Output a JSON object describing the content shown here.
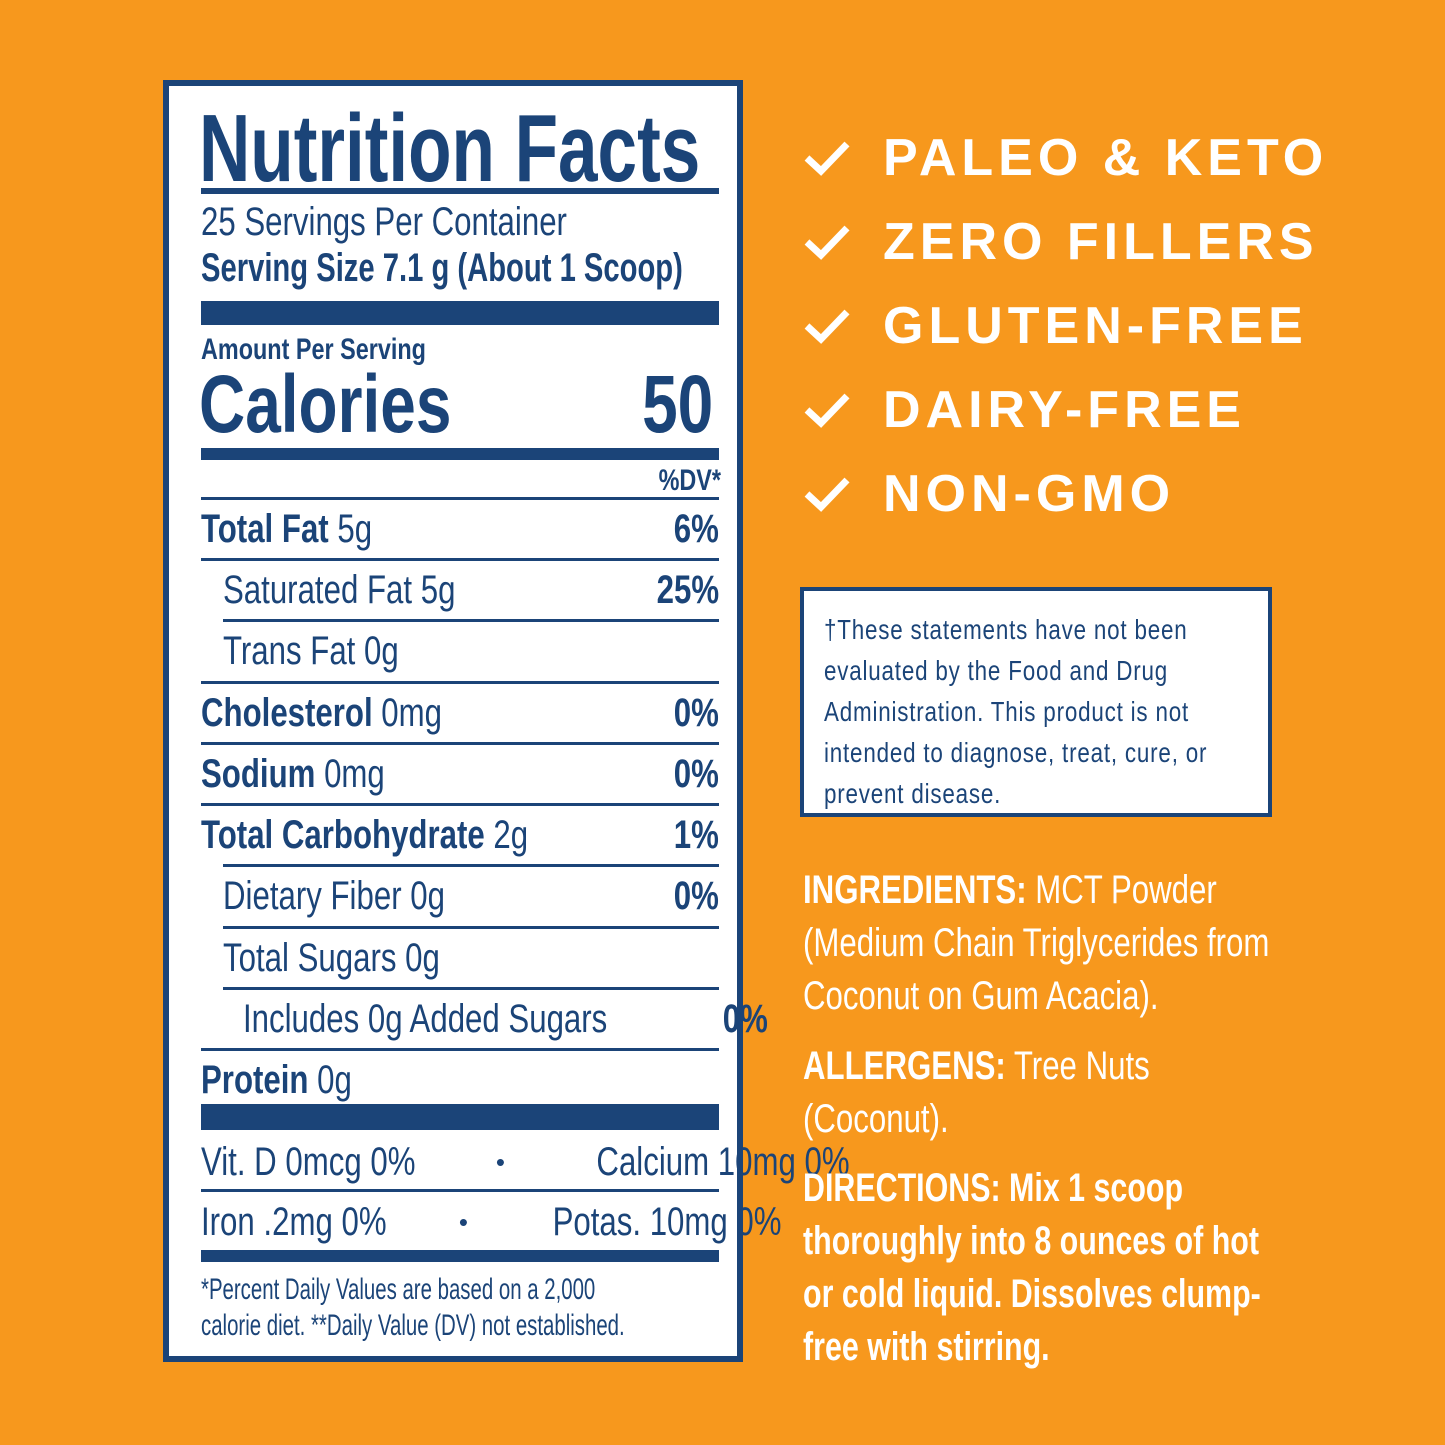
{
  "label": {
    "title": "Nutrition Facts",
    "servings": "25 Servings Per Container",
    "serving_size": "Serving Size 7.1 g (About 1 Scoop)",
    "amount_per_serving": "Amount Per Serving",
    "calories_label": "Calories",
    "calories_value": "50",
    "dv_header": "%DV*",
    "nutrients": [
      {
        "name": "Total Fat",
        "amount": "5g",
        "dv": "6%"
      },
      {
        "name": "Saturated Fat 5g",
        "dv": "25%"
      },
      {
        "name": "Trans Fat 0g",
        "dv": ""
      },
      {
        "name": "Cholesterol",
        "amount": " 0mg",
        "dv": "0%"
      },
      {
        "name": "Sodium",
        "amount": "0mg",
        "dv": "0%"
      },
      {
        "name": "Total Carbohydrate",
        "amount": "2g",
        "dv": "1%"
      },
      {
        "name": "Dietary Fiber 0g",
        "dv": "0%"
      },
      {
        "name": "Total Sugars 0g",
        "dv": ""
      },
      {
        "name": "Includes 0g Added Sugars",
        "dv": "0%"
      },
      {
        "name": "Protein",
        "amount": "0g",
        "dv": ""
      }
    ],
    "vitamins_row1": {
      "left": "Vit. D 0mcg 0%",
      "sep": "•",
      "right": "Calcium 10mg 0%"
    },
    "vitamins_row2": {
      "left": "Iron .2mg 0%",
      "sep": "•",
      "right": "Potas. 10mg 0%"
    },
    "footnote_line1": "*Percent Daily Values are based on a 2,000",
    "footnote_line2": "calorie diet. **Daily Value (DV) not established."
  },
  "claims": [
    {
      "icon": "checkmark-icon",
      "text": "PALEO & KETO"
    },
    {
      "icon": "checkmark-icon",
      "text": "ZERO FILLERS"
    },
    {
      "icon": "checkmark-icon",
      "text": "GLUTEN-FREE"
    },
    {
      "icon": "checkmark-icon",
      "text": "DAIRY-FREE"
    },
    {
      "icon": "checkmark-icon",
      "text": "NON-GMO"
    }
  ],
  "disclaimer": "†These statements have not been evaluated by the Food and Drug Administration. This product is not intended to diagnose, treat, cure, or prevent disease.",
  "ingredients": {
    "label": "INGREDIENTS:",
    "text": " MCT Powder (Medium Chain Triglycerides from Coconut on Gum Acacia)."
  },
  "allergens": {
    "label": "ALLERGENS:",
    "text": " Tree Nuts (Coconut)."
  },
  "directions": {
    "label": "DIRECTIONS:",
    "text": " Mix 1 scoop thoroughly into 8 ounces of hot or cold liquid. Dissolves clump-free with stirring."
  },
  "colors": {
    "background": "#f7981d",
    "navy": "#1b4478",
    "white": "#ffffff"
  }
}
